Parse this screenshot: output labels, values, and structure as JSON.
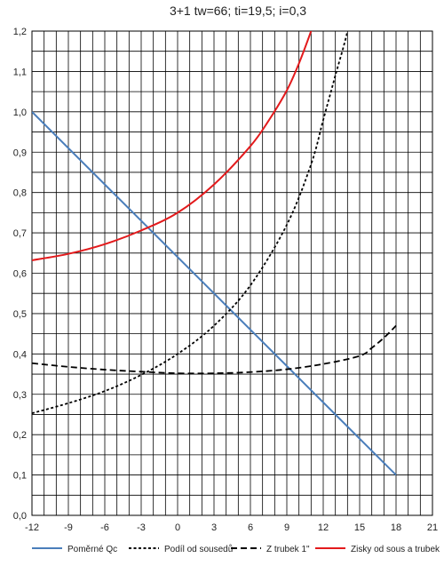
{
  "chart_data": {
    "type": "line",
    "title": "3+1 tw=66; ti=19,5; i=0,3",
    "xlabel": "",
    "ylabel": "",
    "xlim": [
      -12,
      21
    ],
    "ylim": [
      0,
      1.2
    ],
    "x_ticks": [
      -12,
      -9,
      -6,
      -3,
      0,
      3,
      6,
      9,
      12,
      15,
      18,
      21
    ],
    "x_tick_labels": [
      "-12",
      "-9",
      "-6",
      "-3",
      "0",
      "3",
      "6",
      "9",
      "12",
      "15",
      "18",
      "21"
    ],
    "y_ticks": [
      0,
      0.1,
      0.2,
      0.3,
      0.4,
      0.5,
      0.6,
      0.7,
      0.8,
      0.9,
      1.0,
      1.1,
      1.2
    ],
    "y_tick_labels": [
      "0,0",
      "0,1",
      "0,2",
      "0,3",
      "0,4",
      "0,5",
      "0,6",
      "0,7",
      "0,8",
      "0,9",
      "1,0",
      "1,1",
      "1,2"
    ],
    "grid": true,
    "legend_position": "bottom",
    "series": [
      {
        "name": "Poměrné Qc",
        "color": "#4a7ebb",
        "dash": "solid",
        "x": [
          -12,
          18
        ],
        "y": [
          1.0,
          0.1
        ]
      },
      {
        "name": "Podíl od sousedů",
        "color": "#000000",
        "dash": "dotted",
        "x": [
          -12,
          -9,
          -6,
          -3,
          0,
          3,
          6,
          9,
          11,
          12,
          13,
          14,
          14.5
        ],
        "y": [
          0.253,
          0.278,
          0.308,
          0.348,
          0.4,
          0.47,
          0.57,
          0.72,
          0.87,
          0.98,
          1.09,
          1.2,
          1.29
        ]
      },
      {
        "name": "Z trubek 1\"",
        "color": "#000000",
        "dash": "dashed",
        "x": [
          -12,
          -9,
          -6,
          -3,
          0,
          3,
          6,
          9,
          12,
          15,
          16,
          17,
          18
        ],
        "y": [
          0.377,
          0.368,
          0.361,
          0.356,
          0.352,
          0.352,
          0.355,
          0.362,
          0.375,
          0.395,
          0.415,
          0.44,
          0.47
        ]
      },
      {
        "name": "Zisky od sous a trubek",
        "color": "#e31a1c",
        "dash": "solid",
        "x": [
          -12,
          -9,
          -6,
          -3,
          0,
          3,
          6,
          7.5,
          9,
          10,
          11,
          11.2
        ],
        "y": [
          0.632,
          0.648,
          0.672,
          0.706,
          0.75,
          0.82,
          0.915,
          0.978,
          1.053,
          1.12,
          1.2,
          1.22
        ]
      }
    ]
  }
}
